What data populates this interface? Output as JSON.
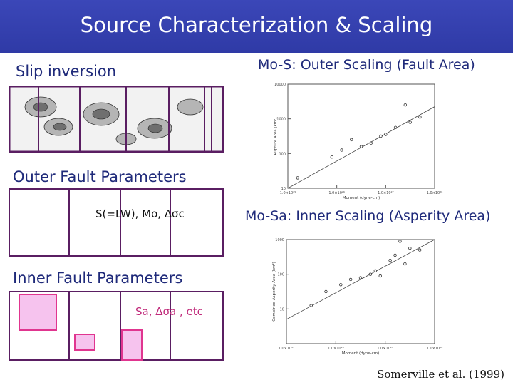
{
  "slide": {
    "title": "Source Characterization & Scaling",
    "left": {
      "slip_inversion_label": "Slip inversion",
      "outer_params_label": "Outer Fault Parameters",
      "outer_params_text": "S(=LW), Mo, Δσc",
      "inner_params_label": "Inner Fault Parameters",
      "inner_params_text": "Sa, Δσa , etc"
    },
    "right": {
      "top_label": "Mo-S: Outer Scaling (Fault Area)",
      "bottom_label": "Mo-Sa: Inner Scaling (Asperity Area)",
      "citation": "Somerville et al. (1999)"
    },
    "colors": {
      "title_bar": "#3b47b8",
      "text_blue": "#1f2a7a",
      "box_purple": "#5a1e62",
      "asperity_pink": "#f6c3ee",
      "asperity_border": "#e0358f"
    }
  },
  "chart_data": [
    {
      "type": "scatter",
      "title": "",
      "xlabel": "Moment (dyne-cm)",
      "ylabel": "Rupture Area (km²)",
      "scale": "log-log",
      "ylim": [
        10,
        10000
      ],
      "y_ticks": [
        "10000",
        "1000",
        "100",
        "10"
      ],
      "x_ticks": [
        "1.0×10²⁵",
        "1.0×10²⁶",
        "1.0×10²⁷",
        "1.0×10²⁸"
      ],
      "x_range_log10": [
        25,
        28
      ],
      "points_log10": [
        {
          "x": 25.2,
          "y": 1.3
        },
        {
          "x": 25.9,
          "y": 1.9
        },
        {
          "x": 26.1,
          "y": 2.1
        },
        {
          "x": 26.3,
          "y": 2.4
        },
        {
          "x": 26.5,
          "y": 2.2
        },
        {
          "x": 26.7,
          "y": 2.3
        },
        {
          "x": 26.9,
          "y": 2.5
        },
        {
          "x": 27.0,
          "y": 2.55
        },
        {
          "x": 27.2,
          "y": 2.75
        },
        {
          "x": 27.5,
          "y": 2.9
        },
        {
          "x": 27.7,
          "y": 3.05
        },
        {
          "x": 27.4,
          "y": 3.4
        }
      ],
      "fit_line_log10": [
        {
          "x": 25.0,
          "y": 1.0
        },
        {
          "x": 28.0,
          "y": 3.35
        }
      ]
    },
    {
      "type": "scatter",
      "title": "",
      "xlabel": "Moment (dyne-cm)",
      "ylabel": "Combined Asperity Area (km²)",
      "scale": "log-log",
      "ylim": [
        1,
        1000
      ],
      "y_ticks": [
        "1000",
        "100",
        "10"
      ],
      "x_ticks": [
        "1.0×10²⁵",
        "1.0×10²⁶",
        "1.0×10²⁷",
        "1.0×10²⁸"
      ],
      "x_range_log10": [
        25,
        28
      ],
      "points_log10": [
        {
          "x": 25.5,
          "y": 1.1
        },
        {
          "x": 25.8,
          "y": 1.5
        },
        {
          "x": 26.1,
          "y": 1.7
        },
        {
          "x": 26.3,
          "y": 1.85
        },
        {
          "x": 26.5,
          "y": 1.9
        },
        {
          "x": 26.7,
          "y": 2.0
        },
        {
          "x": 26.8,
          "y": 2.1
        },
        {
          "x": 26.9,
          "y": 1.95
        },
        {
          "x": 27.1,
          "y": 2.4
        },
        {
          "x": 27.2,
          "y": 2.55
        },
        {
          "x": 27.4,
          "y": 2.3
        },
        {
          "x": 27.5,
          "y": 2.75
        },
        {
          "x": 27.7,
          "y": 2.7
        },
        {
          "x": 27.3,
          "y": 2.95
        }
      ],
      "fit_line_log10": [
        {
          "x": 25.0,
          "y": 0.7
        },
        {
          "x": 28.0,
          "y": 3.0
        }
      ]
    }
  ]
}
